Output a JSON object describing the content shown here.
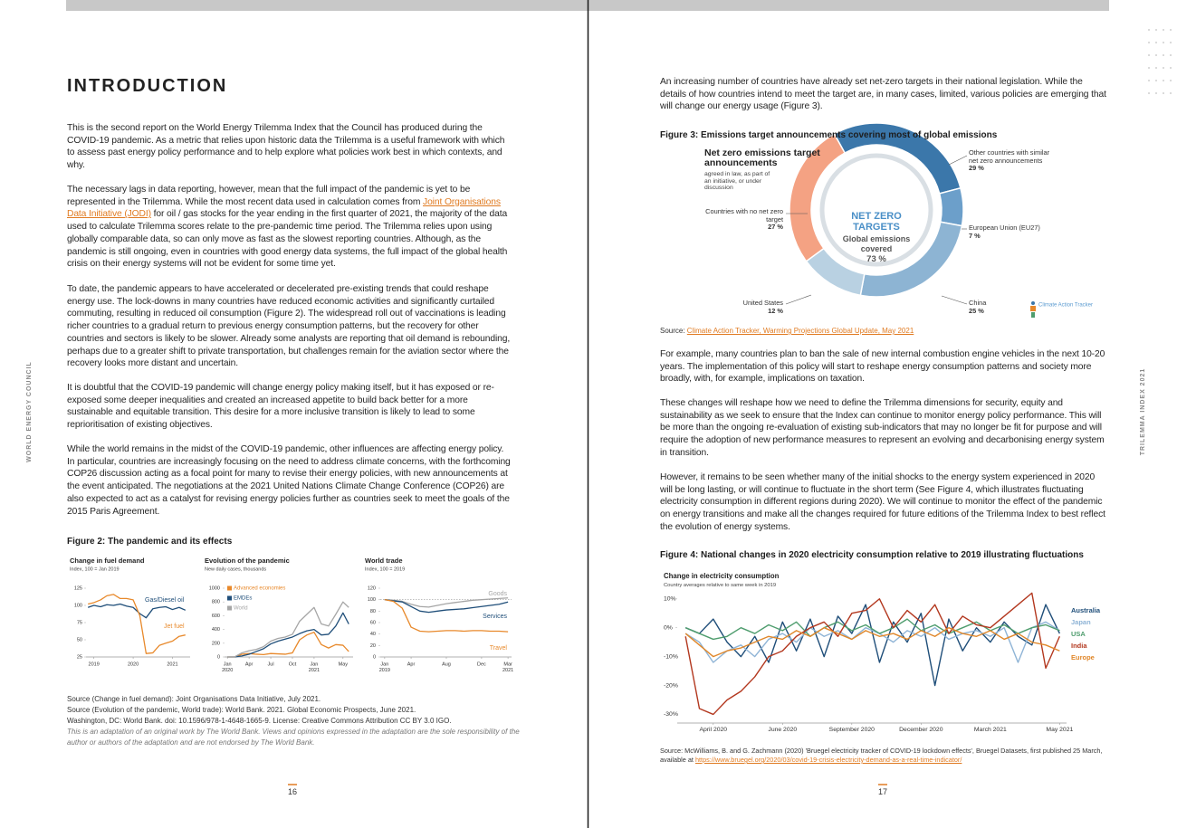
{
  "side_labels": {
    "left": "WORLD ENERGY COUNCIL",
    "right": "TRILEMMA INDEX 2021"
  },
  "left_page": {
    "title": "INTRODUCTION",
    "paragraphs": [
      "This is the second report on the World Energy Trilemma Index that the Council has produced during the COVID-19 pandemic. As a metric that relies upon historic data the Trilemma is a useful framework with which to assess past energy policy performance and to help explore what policies work best in which contexts, and why.",
      {
        "text_before": "The necessary lags in data reporting, however, mean that the full impact of the pandemic is yet to be represented in the Trilemma. While the most recent data used in calculation comes from ",
        "link": "Joint Organisations Data Initiative (JODI)",
        "text_after": " for oil / gas stocks for the year ending in the first quarter of 2021, the majority of the data used to calculate Trilemma scores relate to the pre-pandemic time period. The Trilemma relies upon using globally comparable data, so can only move as fast as the slowest reporting countries. Although, as the pandemic is still ongoing, even in countries with good energy data systems, the full impact of the global health crisis on their energy systems will not be evident for some time yet."
      },
      "To date, the pandemic appears to have accelerated or decelerated pre-existing trends that could reshape energy use. The lock-downs in many countries have reduced economic activities and significantly curtailed commuting, resulting in reduced oil consumption (Figure 2). The widespread roll out of vaccinations is leading richer countries to a gradual return to previous energy consumption patterns, but the recovery for other countries and sectors is likely to be slower. Already some analysts are reporting that oil demand is rebounding, perhaps due to a greater shift to private transportation, but challenges remain for the aviation sector where the recovery looks more distant and uncertain.",
      "It is doubtful that the COVID-19 pandemic will change energy policy making itself, but it has exposed or re-exposed some deeper inequalities and created an increased appetite to build back better for a more sustainable and equitable transition. This desire for a more inclusive transition is likely to lead to some reprioritisation of existing objectives.",
      "While the world remains in the midst of the COVID-19 pandemic, other influences are affecting energy policy. In particular, countries are increasingly focusing on the need to address climate concerns, with the forthcoming COP26 discussion acting as a focal point for many to revise their energy policies, with new announcements at the event anticipated. The negotiations at the 2021 United Nations Climate Change Conference (COP26) are also expected to act as a catalyst for revising energy policies further as countries seek to meet the goals of the 2015 Paris Agreement."
    ],
    "figure2": {
      "title": "Figure 2:  The pandemic and its effects",
      "chart_data": [
        {
          "type": "line",
          "title": "Change in fuel demand",
          "subtitle": "Index, 100 = Jan 2019",
          "legend": "direct",
          "x": [
            2018.85,
            2019.0,
            2019.17,
            2019.33,
            2019.5,
            2019.67,
            2019.83,
            2020.0,
            2020.17,
            2020.33,
            2020.5,
            2020.67,
            2020.83,
            2021.0,
            2021.17,
            2021.33
          ],
          "series": [
            {
              "name": "Gas/Diesel oil",
              "color": "#1f4e79",
              "values": [
                97,
                100,
                98,
                101,
                100,
                102,
                99,
                97,
                88,
                82,
                95,
                97,
                98,
                94,
                97,
                93
              ]
            },
            {
              "name": "Jet fuel",
              "color": "#e8892b",
              "values": [
                102,
                104,
                108,
                114,
                116,
                110,
                110,
                108,
                85,
                30,
                31,
                42,
                45,
                48,
                55,
                57
              ]
            }
          ],
          "xlim": [
            2018.8,
            2021.45
          ],
          "xticks": [
            2019,
            2020,
            2021
          ],
          "ylim": [
            25,
            125
          ],
          "yticks": [
            25,
            50,
            75,
            100,
            125
          ]
        },
        {
          "type": "line",
          "title": "Evolution of the pandemic",
          "subtitle": "New daily cases, thousands",
          "legend": "top-left",
          "x": [
            0,
            1,
            2,
            3,
            4,
            5,
            6,
            7,
            8,
            9,
            10,
            11,
            12,
            13,
            14,
            15,
            16,
            16.8
          ],
          "series": [
            {
              "name": "Advanced economies",
              "color": "#e8892b",
              "values": [
                0,
                0,
                40,
                50,
                40,
                35,
                50,
                45,
                40,
                60,
                250,
                320,
                360,
                180,
                130,
                180,
                170,
                80
              ]
            },
            {
              "name": "EMDEs",
              "color": "#1f4e79",
              "values": [
                0,
                0,
                15,
                40,
                80,
                120,
                190,
                230,
                260,
                290,
                340,
                380,
                400,
                320,
                330,
                450,
                640,
                480
              ]
            },
            {
              "name": "World",
              "color": "#a6a6a6",
              "values": [
                0,
                2,
                60,
                90,
                110,
                150,
                230,
                270,
                290,
                330,
                520,
                620,
                720,
                480,
                450,
                620,
                800,
                720
              ]
            }
          ],
          "xlim": [
            -0.4,
            17.4
          ],
          "xticks": [
            {
              "value": 0,
              "label": "Jan"
            },
            {
              "value": 3,
              "label": "Apr"
            },
            {
              "value": 6,
              "label": "Jul"
            },
            {
              "value": 9,
              "label": "Oct"
            },
            {
              "value": 12,
              "label": "Jan"
            },
            {
              "value": 16,
              "label": "May"
            }
          ],
          "x_year_labels": [
            {
              "value": 0,
              "label": "2020"
            },
            {
              "value": 12,
              "label": "2021"
            }
          ],
          "ylim": [
            0,
            1000
          ],
          "yticks": [
            0,
            200,
            400,
            600,
            800,
            1000
          ]
        },
        {
          "type": "line",
          "title": "World trade",
          "subtitle": "Index, 100 = 2019",
          "legend": "direct",
          "x": [
            0,
            1,
            2,
            3,
            4,
            5,
            6,
            7,
            8,
            9,
            10,
            11,
            12,
            13,
            14
          ],
          "series": [
            {
              "name": "Goods",
              "color": "#a6a6a6",
              "values": [
                100,
                99,
                97,
                92,
                88,
                87,
                90,
                93,
                95,
                97,
                99,
                100,
                101,
                102,
                103
              ]
            },
            {
              "name": "Services",
              "color": "#1f4e79",
              "values": [
                100,
                98,
                96,
                88,
                80,
                78,
                80,
                82,
                83,
                84,
                86,
                88,
                90,
                92,
                96
              ]
            },
            {
              "name": "Travel",
              "color": "#e8892b",
              "values": [
                100,
                97,
                85,
                52,
                45,
                44,
                45,
                46,
                46,
                45,
                46,
                46,
                45,
                45,
                44
              ]
            }
          ],
          "xlim": [
            -0.5,
            14.4
          ],
          "xticks": [
            {
              "value": 0,
              "label": "Jan"
            },
            {
              "value": 3,
              "label": "Apr"
            },
            {
              "value": 7,
              "label": "Aug"
            },
            {
              "value": 11,
              "label": "Dec"
            },
            {
              "value": 14,
              "label": "Mar"
            }
          ],
          "x_year_labels": [
            {
              "value": 0,
              "label": "2019"
            },
            {
              "value": 14,
              "label": "2021"
            }
          ],
          "reference_line": 100,
          "ylim": [
            0,
            120
          ],
          "yticks": [
            0,
            20,
            40,
            60,
            80,
            100,
            120
          ]
        }
      ]
    },
    "sources": [
      "Source (Change in fuel demand): Joint Organisations Data Initiative, July 2021.",
      "Source (Evolution of the pandemic, World trade): World Bank. 2021. Global Economic Prospects, June 2021.",
      "Washington, DC: World Bank. doi: 10.1596/978-1-4648-1665-9. License: Creative Commons Attribution CC BY 3.0 IGO."
    ],
    "note": "This is an adaptation of an original work by The World Bank. Views and opinions expressed in the adaptation are the sole responsibility of the author or authors of the adaptation and are not endorsed by The World Bank.",
    "page_number": "16"
  },
  "right_page": {
    "paragraphs": [
      "An increasing number of countries have already set net-zero targets in their national legislation. While the details of how countries intend to meet the target are, in many cases, limited, various policies are emerging that will change our energy usage (Figure 3).",
      "For example, many countries plan to ban the sale of new internal combustion engine vehicles in the next 10-20 years. The implementation of this policy will start to reshape energy consumption patterns and society more broadly, with, for example, implications on taxation.",
      "These changes will reshape how we need to define the Trilemma dimensions for security, equity and sustainability as we seek to ensure that the Index can continue to monitor energy policy performance. This will be more than the ongoing re-evaluation of existing sub-indicators that may no longer be fit for purpose and will require the adoption of new performance measures to represent an evolving and decarbonising energy system in transition.",
      "However, it remains to be seen whether many of the initial shocks to the energy system experienced in 2020 will be long lasting, or will continue to fluctuate in the short term (See Figure 4, which illustrates fluctuating electricity consumption in different regions during 2020). We will continue to monitor the effect of the pandemic on energy transitions and make all the changes required for future editions of the Trilemma Index to best reflect the evolution of energy systems."
    ],
    "figure3": {
      "title": "Figure 3:  Emissions target announcements covering most of global emissions",
      "heading": "Net zero emissions target announcements",
      "heading_note": "agreed in law, as part of an initiative, or under discussion",
      "center_title": "NET ZERO TARGETS",
      "center_subtitle": "Global emissions covered",
      "center_value": "73 %",
      "chart_data": {
        "type": "donut",
        "categories": [
          "Other countries with similar net zero announcements",
          "European Union (EU27)",
          "China",
          "United States",
          "Countries with no net zero target"
        ],
        "values": [
          29,
          7,
          25,
          12,
          27
        ],
        "value_labels": [
          "29 %",
          "7 %",
          "25 %",
          "12 %",
          "27 %"
        ],
        "colors": [
          "#3b77aa",
          "#6c9fca",
          "#8db4d3",
          "#b9d1e2",
          "#f4a283"
        ]
      },
      "logo_text": "Climate Action Tracker",
      "source_prefix": "Source: ",
      "source_link": "Climate Action Tracker, Warming Projections Global Update, May 2021"
    },
    "figure4": {
      "title": "Figure 4:  National changes in 2020 electricity consumption relative to 2019 illustrating fluctuations",
      "chart_data": {
        "type": "line",
        "title": "Change in electricity consumption",
        "subtitle": "Country averages relative to same week in 2019",
        "legend": "right",
        "x": [
          0,
          2,
          4,
          6,
          8,
          10,
          12,
          14,
          16,
          18,
          20,
          22,
          24,
          26,
          28,
          30,
          32,
          34,
          36,
          38,
          40,
          42,
          44,
          46,
          48,
          50,
          52,
          54
        ],
        "series": [
          {
            "name": "Australia",
            "color": "#1f4e79",
            "values": [
              0,
              -2,
              3,
              -5,
              -10,
              -3,
              -12,
              2,
              -8,
              3,
              -10,
              4,
              -2,
              8,
              -12,
              2,
              -5,
              5,
              -20,
              3,
              -8,
              0,
              -5,
              2,
              -3,
              -6,
              8,
              -2
            ]
          },
          {
            "name": "Japan",
            "color": "#8fb4d6",
            "values": [
              -2,
              -5,
              -12,
              -8,
              -6,
              -10,
              -4,
              -2,
              -5,
              0,
              -3,
              -1,
              -4,
              0,
              -2,
              -5,
              -1,
              -3,
              0,
              -4,
              -2,
              -1,
              -3,
              0,
              -12,
              0,
              2,
              -1
            ]
          },
          {
            "name": "USA",
            "color": "#4f9d6e",
            "values": [
              0,
              -2,
              -4,
              -3,
              0,
              -2,
              1,
              -1,
              2,
              -3,
              0,
              2,
              -1,
              1,
              -2,
              0,
              3,
              -1,
              1,
              -2,
              0,
              2,
              -1,
              1,
              -2,
              0,
              1,
              -1
            ]
          },
          {
            "name": "India",
            "color": "#b3381f",
            "values": [
              -3,
              -28,
              -30,
              -25,
              -22,
              -17,
              -10,
              -8,
              -3,
              0,
              2,
              -3,
              5,
              6,
              10,
              0,
              6,
              2,
              8,
              -2,
              4,
              1,
              0,
              4,
              8,
              12,
              -14,
              -3
            ]
          },
          {
            "name": "Europe",
            "color": "#e0872a",
            "values": [
              -2,
              -6,
              -10,
              -8,
              -7,
              -5,
              -3,
              -4,
              -1,
              -3,
              0,
              -2,
              -4,
              -1,
              -3,
              -2,
              -4,
              -1,
              -3,
              0,
              -2,
              -3,
              -1,
              -4,
              -2,
              -5,
              -6,
              -8
            ]
          }
        ],
        "xlim": [
          -1.2,
          55
        ],
        "xticks": [
          {
            "value": 4,
            "label": "April 2020"
          },
          {
            "value": 14,
            "label": "June 2020"
          },
          {
            "value": 24,
            "label": "September 2020"
          },
          {
            "value": 34,
            "label": "December 2020"
          },
          {
            "value": 44,
            "label": "March 2021"
          },
          {
            "value": 54,
            "label": "May 2021"
          }
        ],
        "ylim": [
          -33,
          14
        ],
        "yticks": [
          {
            "value": 10,
            "label": "10%"
          },
          {
            "value": 0,
            "label": "0%"
          },
          {
            "value": -10,
            "label": "-10%"
          },
          {
            "value": -20,
            "label": "-20%"
          },
          {
            "value": -30,
            "label": "-30%"
          }
        ]
      },
      "source_prefix": "Source: McWilliams, B. and G. Zachmann (2020) 'Bruegel electricity tracker of COVID-19 lockdown effects', Bruegel Datasets, first published 25 March, available at ",
      "source_link": "https://www.bruegel.org/2020/03/covid-19-crisis-electricity-demand-as-a-real-time-indicator/"
    },
    "page_number": "17"
  }
}
